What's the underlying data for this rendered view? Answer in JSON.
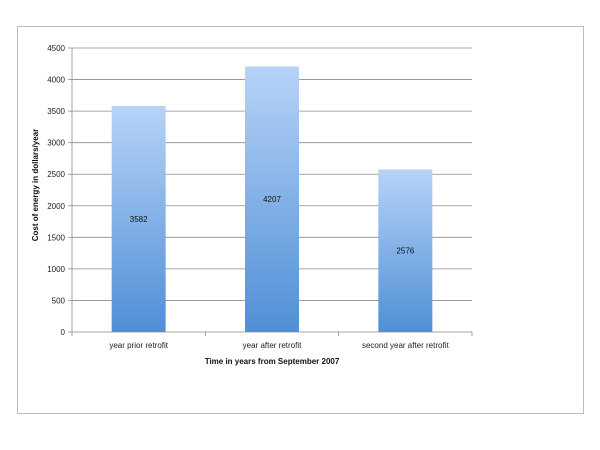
{
  "chart_data": {
    "type": "bar",
    "categories": [
      "year prior retrofit",
      "year after retrofit",
      "second year after retrofit"
    ],
    "values": [
      3582,
      4207,
      2576
    ],
    "data_labels": [
      "3582",
      "4207",
      "2576"
    ],
    "title": "",
    "xlabel": "Time in years from September 2007",
    "ylabel": "Cost of energy in dollars/year",
    "ylim": [
      0,
      4500
    ],
    "yticks": [
      0,
      500,
      1000,
      1500,
      2000,
      2500,
      3000,
      3500,
      4000,
      4500
    ],
    "grid": true,
    "legend": "none",
    "colors": {
      "bar_top": "#b7d3f7",
      "bar_bottom": "#4f8fd6",
      "grid": "#8c8c8c",
      "axis": "#8c8c8c"
    }
  }
}
